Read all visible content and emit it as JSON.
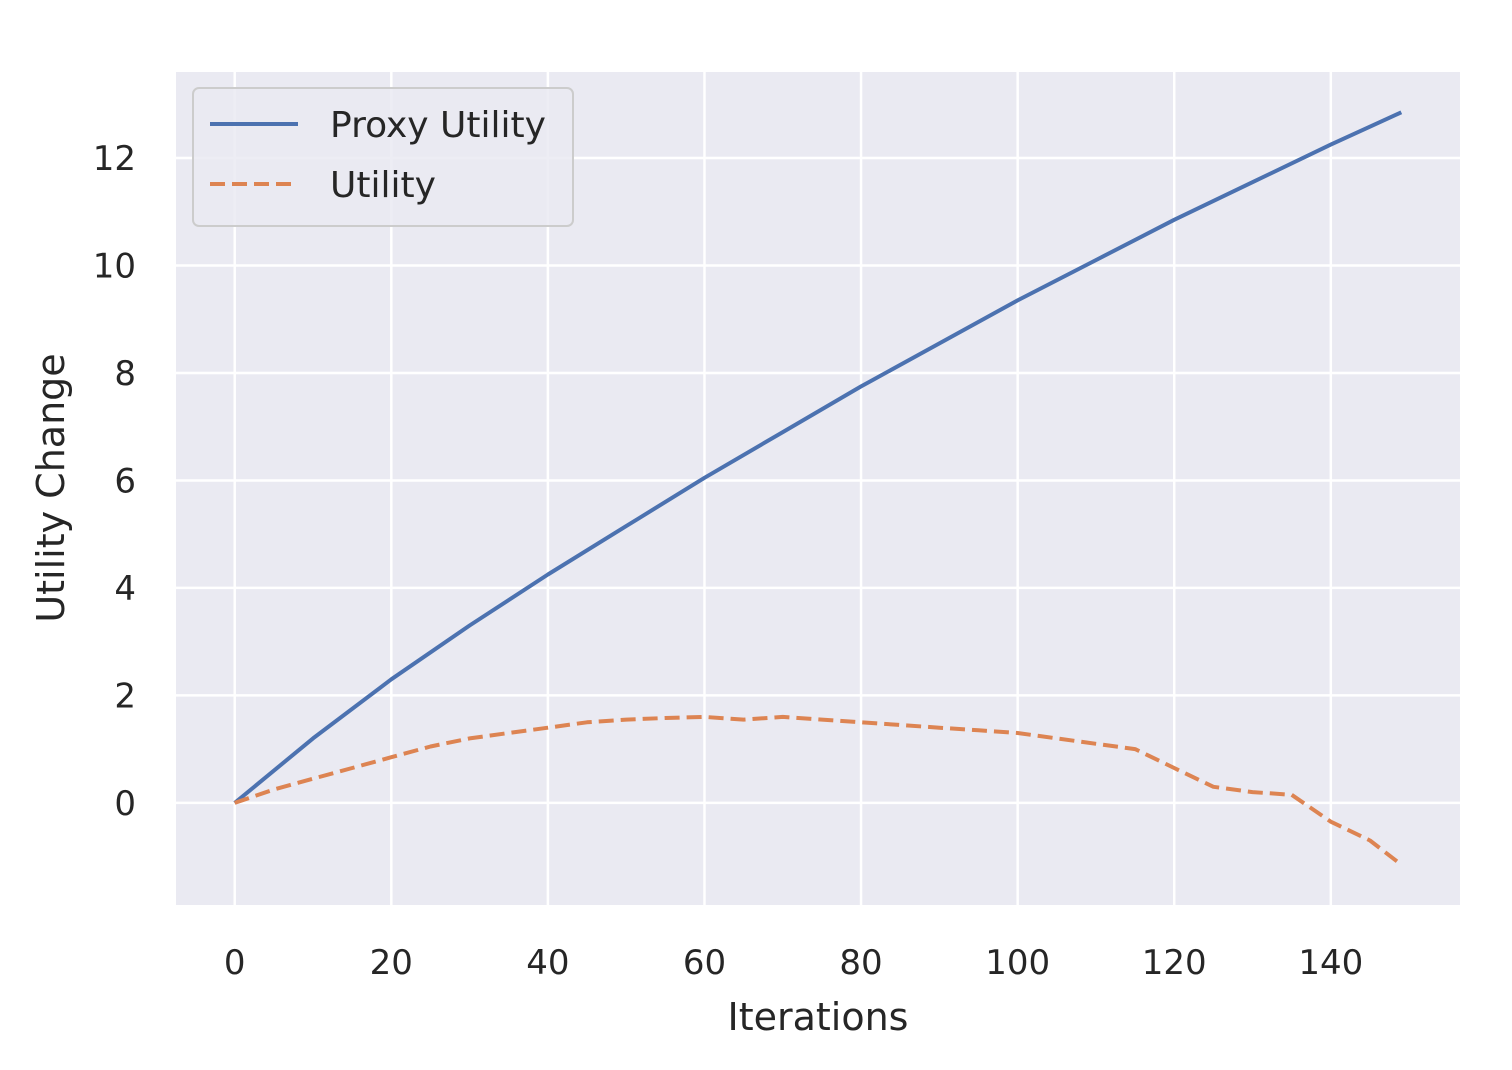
{
  "chart_data": {
    "type": "line",
    "title": "",
    "xlabel": "Iterations",
    "ylabel": "Utility Change",
    "xlim": [
      -7.5,
      156.5
    ],
    "ylim": [
      -1.9,
      13.6
    ],
    "xticks": [
      0,
      20,
      40,
      60,
      80,
      100,
      120,
      140
    ],
    "yticks": [
      0,
      2,
      4,
      6,
      8,
      10,
      12
    ],
    "grid": true,
    "legend_position": "top-left",
    "background_color": "#eaeaf2",
    "series": [
      {
        "name": "Proxy Utility",
        "color": "#4c72b0",
        "style": "solid",
        "x": [
          0,
          10,
          20,
          30,
          40,
          50,
          60,
          70,
          80,
          90,
          100,
          110,
          120,
          130,
          140,
          149
        ],
        "y": [
          0,
          1.2,
          2.3,
          3.3,
          4.25,
          5.15,
          6.05,
          6.9,
          7.75,
          8.55,
          9.35,
          10.1,
          10.85,
          11.55,
          12.25,
          12.85
        ]
      },
      {
        "name": "Utility",
        "color": "#dd8452",
        "style": "dashed",
        "x": [
          0,
          5,
          10,
          15,
          20,
          25,
          30,
          35,
          40,
          45,
          50,
          55,
          60,
          65,
          70,
          75,
          80,
          85,
          90,
          95,
          100,
          105,
          110,
          115,
          120,
          125,
          130,
          135,
          140,
          145,
          149
        ],
        "y": [
          0,
          0.25,
          0.45,
          0.65,
          0.85,
          1.05,
          1.2,
          1.3,
          1.4,
          1.5,
          1.55,
          1.58,
          1.6,
          1.55,
          1.6,
          1.55,
          1.5,
          1.45,
          1.4,
          1.35,
          1.3,
          1.2,
          1.1,
          1.0,
          0.65,
          0.3,
          0.2,
          0.15,
          -0.35,
          -0.7,
          -1.15
        ]
      }
    ]
  }
}
